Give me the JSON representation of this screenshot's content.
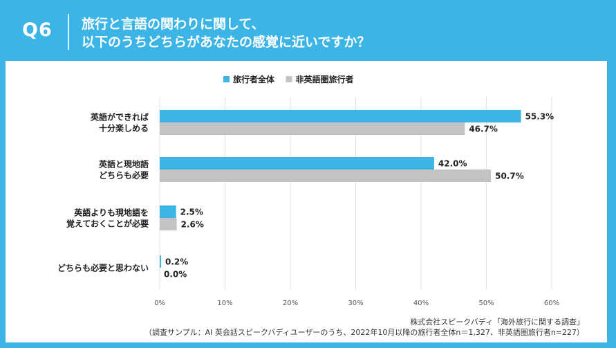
{
  "header": {
    "question_number": "Q6",
    "question_line1": "旅行と言語の関わりに関して、",
    "question_line2": "以下のうちどちらがあなたの感覚に近いですか？"
  },
  "colors": {
    "background": "#3cb5e6",
    "series_all": "#3cb5e6",
    "series_non_english": "#c3c3c3",
    "grid": "#e2e2e2",
    "text": "#222222"
  },
  "chart_data": {
    "type": "bar",
    "orientation": "horizontal",
    "categories": [
      [
        "英語ができれば",
        "十分楽しめる"
      ],
      [
        "英語と現地語",
        "どちらも必要"
      ],
      [
        "英語よりも現地語を",
        "覚えておくことが必要"
      ],
      [
        "どちらも必要と思わない"
      ]
    ],
    "series": [
      {
        "name": "旅行者全体",
        "values": [
          55.3,
          42.0,
          2.5,
          0.2
        ],
        "labels": [
          "55.3%",
          "42.0%",
          "2.5%",
          "0.2%"
        ]
      },
      {
        "name": "非英語圏旅行者",
        "values": [
          46.7,
          50.7,
          2.6,
          0.0
        ],
        "labels": [
          "46.7%",
          "50.7%",
          "2.6%",
          "0.0%"
        ]
      }
    ],
    "xlim": [
      0,
      60
    ],
    "xticks": [
      "0%",
      "10%",
      "20%",
      "30%",
      "40%",
      "50%",
      "60%"
    ],
    "grid": true,
    "legend_position": "top-center"
  },
  "source": {
    "line1": "株式会社スピークバディ「海外旅行に関する調査」",
    "line2": "（調査サンプル：AI 英会話スピークバディユーザーのうち、2022年10月以降の旅行者全体n＝1,327、非英語圏旅行者n=227）"
  }
}
